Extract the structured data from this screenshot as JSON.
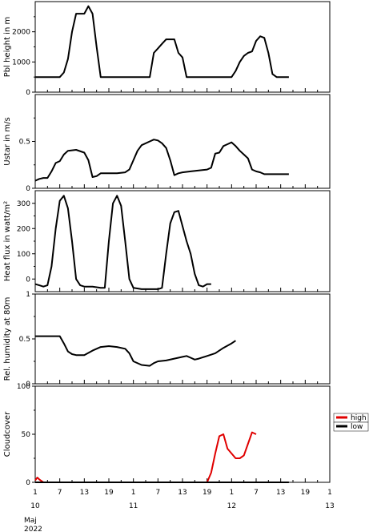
{
  "chart_data": [
    {
      "type": "line",
      "ylabel": "Pbl height in m",
      "ylim": [
        0,
        3000
      ],
      "yticks": [
        0,
        1000,
        2000
      ],
      "series": [
        {
          "color": "#000000",
          "points": [
            [
              0,
              500
            ],
            [
              3,
              500
            ],
            [
              6,
              500
            ],
            [
              7,
              650
            ],
            [
              8,
              1100
            ],
            [
              9,
              2000
            ],
            [
              10,
              2600
            ],
            [
              12,
              2600
            ],
            [
              13,
              2850
            ],
            [
              14,
              2600
            ],
            [
              15,
              1500
            ],
            [
              16,
              500
            ],
            [
              20,
              500
            ],
            [
              24,
              500
            ],
            [
              28,
              500
            ],
            [
              29,
              1300
            ],
            [
              30,
              1450
            ],
            [
              31,
              1600
            ],
            [
              32,
              1750
            ],
            [
              34,
              1750
            ],
            [
              35,
              1300
            ],
            [
              36,
              1150
            ],
            [
              37,
              500
            ],
            [
              40,
              500
            ],
            [
              44,
              500
            ],
            [
              48,
              500
            ],
            [
              49,
              700
            ],
            [
              50,
              1000
            ],
            [
              51,
              1200
            ],
            [
              52,
              1300
            ],
            [
              53,
              1350
            ],
            [
              54,
              1700
            ],
            [
              55,
              1850
            ],
            [
              56,
              1800
            ],
            [
              57,
              1300
            ],
            [
              58,
              600
            ],
            [
              59,
              500
            ],
            [
              62,
              500
            ]
          ]
        }
      ]
    },
    {
      "type": "line",
      "ylabel": "Ustar in m/s",
      "ylim": [
        0,
        1.0
      ],
      "yticks": [
        0,
        0.5
      ],
      "series": [
        {
          "color": "#000000",
          "points": [
            [
              0,
              0.08
            ],
            [
              1,
              0.1
            ],
            [
              2,
              0.11
            ],
            [
              3,
              0.11
            ],
            [
              4,
              0.18
            ],
            [
              5,
              0.27
            ],
            [
              6,
              0.29
            ],
            [
              7,
              0.36
            ],
            [
              8,
              0.4
            ],
            [
              10,
              0.41
            ],
            [
              12,
              0.38
            ],
            [
              13,
              0.3
            ],
            [
              14,
              0.12
            ],
            [
              15,
              0.13
            ],
            [
              16,
              0.16
            ],
            [
              18,
              0.16
            ],
            [
              20,
              0.16
            ],
            [
              22,
              0.17
            ],
            [
              23,
              0.2
            ],
            [
              24,
              0.3
            ],
            [
              25,
              0.4
            ],
            [
              26,
              0.46
            ],
            [
              28,
              0.5
            ],
            [
              29,
              0.52
            ],
            [
              30,
              0.51
            ],
            [
              31,
              0.48
            ],
            [
              32,
              0.43
            ],
            [
              33,
              0.3
            ],
            [
              34,
              0.14
            ],
            [
              35,
              0.16
            ],
            [
              36,
              0.17
            ],
            [
              38,
              0.18
            ],
            [
              40,
              0.19
            ],
            [
              42,
              0.2
            ],
            [
              43,
              0.22
            ],
            [
              44,
              0.37
            ],
            [
              45,
              0.38
            ],
            [
              46,
              0.45
            ],
            [
              47,
              0.47
            ],
            [
              48,
              0.49
            ],
            [
              49,
              0.45
            ],
            [
              50,
              0.4
            ],
            [
              51,
              0.36
            ],
            [
              52,
              0.32
            ],
            [
              53,
              0.2
            ],
            [
              54,
              0.18
            ],
            [
              55,
              0.17
            ],
            [
              56,
              0.15
            ],
            [
              62,
              0.15
            ]
          ]
        }
      ]
    },
    {
      "type": "line",
      "ylabel": "Heat flux in watt/m²",
      "ylim": [
        -50,
        350
      ],
      "yticks": [
        0,
        100,
        200,
        300
      ],
      "series": [
        {
          "color": "#000000",
          "points": [
            [
              0,
              -20
            ],
            [
              1,
              -25
            ],
            [
              2,
              -30
            ],
            [
              3,
              -25
            ],
            [
              4,
              50
            ],
            [
              5,
              200
            ],
            [
              6,
              310
            ],
            [
              7,
              330
            ],
            [
              8,
              280
            ],
            [
              9,
              150
            ],
            [
              10,
              0
            ],
            [
              11,
              -25
            ],
            [
              12,
              -30
            ],
            [
              14,
              -30
            ],
            [
              16,
              -35
            ],
            [
              17,
              -35
            ],
            [
              18,
              150
            ],
            [
              19,
              300
            ],
            [
              20,
              330
            ],
            [
              21,
              290
            ],
            [
              22,
              150
            ],
            [
              23,
              0
            ],
            [
              24,
              -35
            ],
            [
              26,
              -40
            ],
            [
              28,
              -40
            ],
            [
              30,
              -40
            ],
            [
              31,
              -35
            ],
            [
              32,
              100
            ],
            [
              33,
              220
            ],
            [
              34,
              265
            ],
            [
              35,
              270
            ],
            [
              36,
              210
            ],
            [
              37,
              150
            ],
            [
              38,
              100
            ],
            [
              39,
              20
            ],
            [
              40,
              -25
            ],
            [
              41,
              -30
            ],
            [
              42,
              -20
            ],
            [
              43,
              -20
            ]
          ]
        }
      ]
    },
    {
      "type": "line",
      "ylabel": "Rel. humidity at 80m",
      "ylim": [
        0,
        1.0
      ],
      "yticks": [
        0,
        0.5,
        1.0
      ],
      "series": [
        {
          "color": "#000000",
          "points": [
            [
              0,
              0.53
            ],
            [
              4,
              0.53
            ],
            [
              6,
              0.53
            ],
            [
              7,
              0.45
            ],
            [
              8,
              0.36
            ],
            [
              9,
              0.33
            ],
            [
              10,
              0.32
            ],
            [
              12,
              0.32
            ],
            [
              14,
              0.37
            ],
            [
              16,
              0.41
            ],
            [
              18,
              0.42
            ],
            [
              20,
              0.41
            ],
            [
              22,
              0.39
            ],
            [
              23,
              0.34
            ],
            [
              24,
              0.25
            ],
            [
              26,
              0.21
            ],
            [
              28,
              0.2
            ],
            [
              29,
              0.23
            ],
            [
              30,
              0.25
            ],
            [
              32,
              0.26
            ],
            [
              34,
              0.28
            ],
            [
              36,
              0.3
            ],
            [
              37,
              0.31
            ],
            [
              38,
              0.29
            ],
            [
              39,
              0.27
            ],
            [
              40,
              0.28
            ],
            [
              42,
              0.31
            ],
            [
              44,
              0.34
            ],
            [
              46,
              0.4
            ],
            [
              48,
              0.45
            ],
            [
              49,
              0.48
            ]
          ]
        }
      ]
    },
    {
      "type": "line",
      "ylabel": "Cloudcover",
      "ylim": [
        0,
        100
      ],
      "yticks": [
        0,
        50,
        100
      ],
      "legend": {
        "placement": "right",
        "entries": [
          {
            "name": "high",
            "color": "#e00000"
          },
          {
            "name": "low",
            "color": "#000000"
          }
        ]
      },
      "series": [
        {
          "name": "high",
          "color": "#e00000",
          "points": [
            [
              0,
              2
            ],
            [
              0.5,
              5
            ],
            [
              1,
              3
            ],
            [
              2,
              0
            ],
            [
              42,
              0
            ],
            [
              43,
              10
            ],
            [
              44,
              30
            ],
            [
              45,
              48
            ],
            [
              46,
              50
            ],
            [
              47,
              35
            ],
            [
              48,
              30
            ],
            [
              49,
              25
            ],
            [
              50,
              25
            ],
            [
              51,
              28
            ],
            [
              52,
              40
            ],
            [
              53,
              52
            ],
            [
              54,
              50
            ]
          ]
        },
        {
          "name": "low",
          "color": "#000000",
          "points": [
            [
              0,
              0
            ],
            [
              62,
              0
            ]
          ]
        }
      ]
    }
  ],
  "x_axis": {
    "ticks": [
      {
        "label": "1",
        "h": 0
      },
      {
        "label": "7",
        "h": 6
      },
      {
        "label": "13",
        "h": 12
      },
      {
        "label": "19",
        "h": 18
      },
      {
        "label": "1",
        "h": 24
      },
      {
        "label": "7",
        "h": 30
      },
      {
        "label": "13",
        "h": 36
      },
      {
        "label": "19",
        "h": 42
      },
      {
        "label": "1",
        "h": 48
      },
      {
        "label": "7",
        "h": 54
      },
      {
        "label": "13",
        "h": 60
      },
      {
        "label": "19",
        "h": 66
      },
      {
        "label": "1",
        "h": 72
      }
    ],
    "days": [
      {
        "label": "10",
        "h": 0
      },
      {
        "label": "11",
        "h": 24
      },
      {
        "label": "12",
        "h": 48
      },
      {
        "label": "13",
        "h": 72
      }
    ],
    "month": "Maj",
    "year": "2022"
  }
}
